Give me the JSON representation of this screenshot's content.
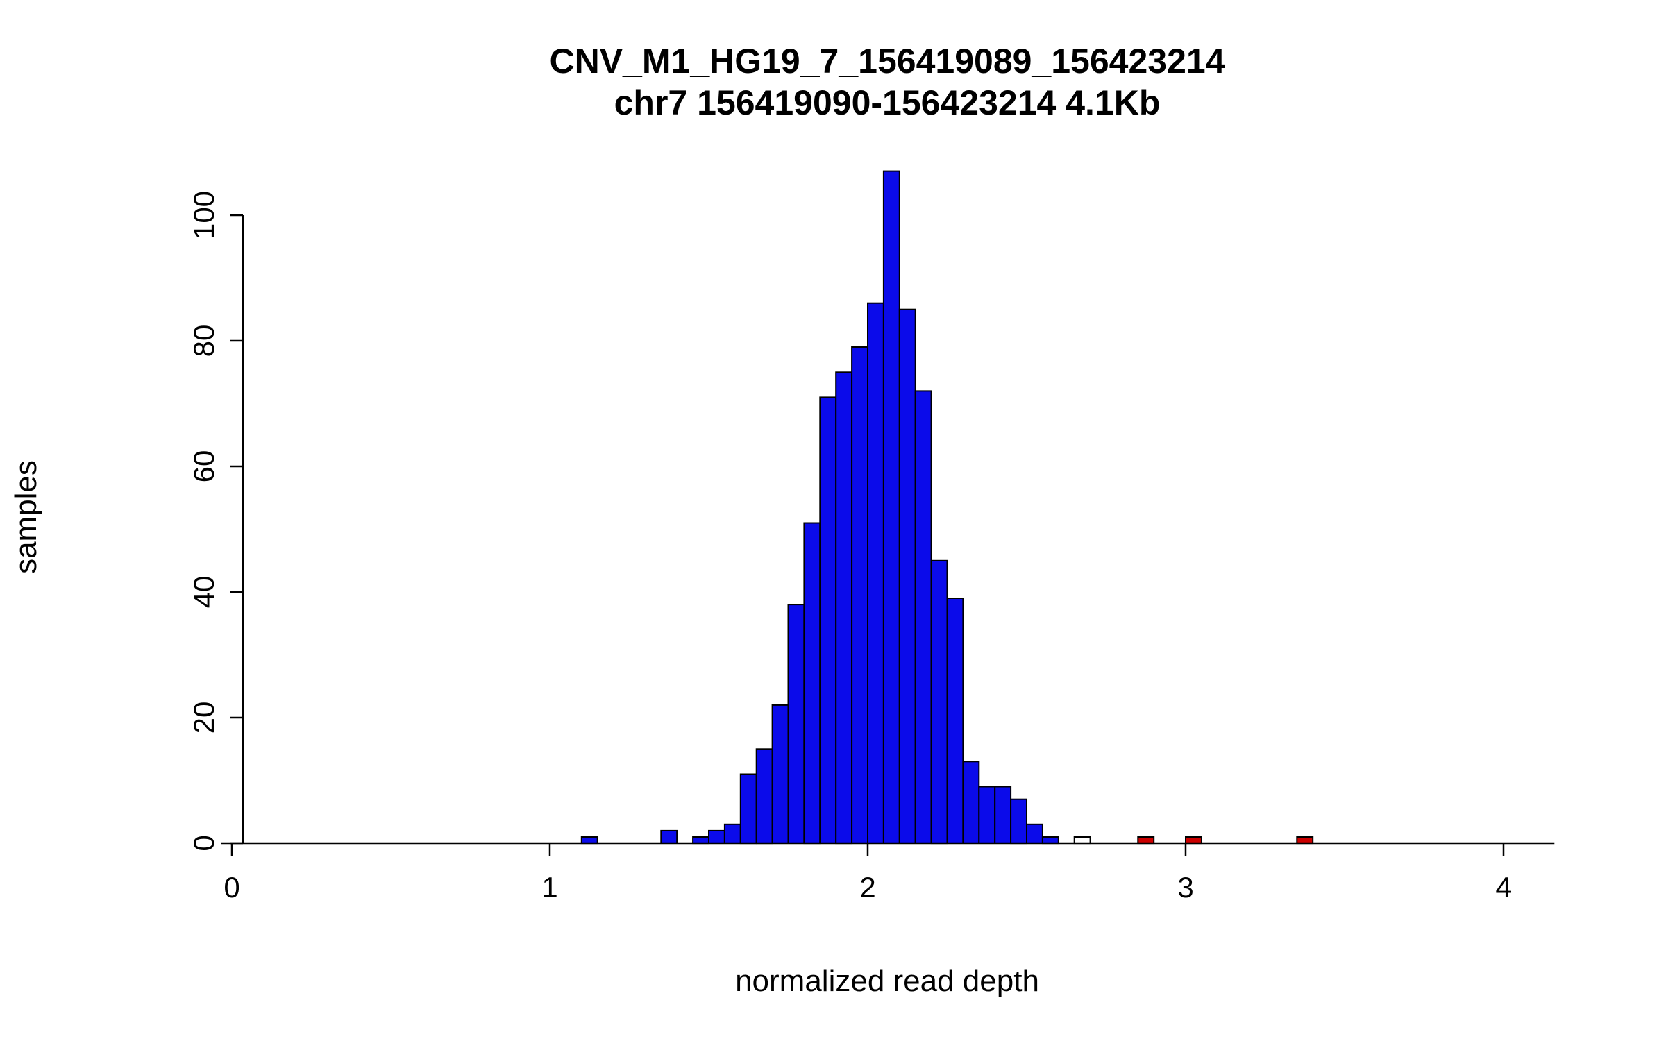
{
  "chart_data": {
    "type": "bar",
    "chart_kind": "histogram",
    "title": "CNV_M1_HG19_7_156419089_156423214",
    "subtitle": "chr7 156419090-156423214 4.1Kb",
    "xlabel": "normalized read depth",
    "ylabel": "samples",
    "x_ticks": [
      0,
      1,
      2,
      3,
      4
    ],
    "y_ticks": [
      0,
      20,
      40,
      60,
      80,
      100
    ],
    "xlim": [
      0,
      4.15
    ],
    "ylim": [
      0,
      107
    ],
    "bin_width": 0.05,
    "grid": false,
    "legend": "none",
    "palette": {
      "blue": "#0b0bea",
      "red": "#cc0000",
      "white": "#ffffff",
      "stroke": "#000000",
      "text": "#000000",
      "background": "#ffffff"
    },
    "bars": [
      {
        "x": 1.1,
        "count": 1,
        "color": "blue"
      },
      {
        "x": 1.35,
        "count": 2,
        "color": "blue"
      },
      {
        "x": 1.45,
        "count": 1,
        "color": "blue"
      },
      {
        "x": 1.5,
        "count": 2,
        "color": "blue"
      },
      {
        "x": 1.55,
        "count": 3,
        "color": "blue"
      },
      {
        "x": 1.6,
        "count": 11,
        "color": "blue"
      },
      {
        "x": 1.65,
        "count": 15,
        "color": "blue"
      },
      {
        "x": 1.7,
        "count": 22,
        "color": "blue"
      },
      {
        "x": 1.75,
        "count": 38,
        "color": "blue"
      },
      {
        "x": 1.8,
        "count": 51,
        "color": "blue"
      },
      {
        "x": 1.85,
        "count": 71,
        "color": "blue"
      },
      {
        "x": 1.9,
        "count": 75,
        "color": "blue"
      },
      {
        "x": 1.95,
        "count": 79,
        "color": "blue"
      },
      {
        "x": 2.0,
        "count": 86,
        "color": "blue"
      },
      {
        "x": 2.05,
        "count": 107,
        "color": "blue"
      },
      {
        "x": 2.1,
        "count": 85,
        "color": "blue"
      },
      {
        "x": 2.15,
        "count": 72,
        "color": "blue"
      },
      {
        "x": 2.2,
        "count": 45,
        "color": "blue"
      },
      {
        "x": 2.25,
        "count": 39,
        "color": "blue"
      },
      {
        "x": 2.3,
        "count": 13,
        "color": "blue"
      },
      {
        "x": 2.35,
        "count": 9,
        "color": "blue"
      },
      {
        "x": 2.4,
        "count": 9,
        "color": "blue"
      },
      {
        "x": 2.45,
        "count": 7,
        "color": "blue"
      },
      {
        "x": 2.5,
        "count": 3,
        "color": "blue"
      },
      {
        "x": 2.55,
        "count": 1,
        "color": "blue"
      },
      {
        "x": 2.65,
        "count": 1,
        "color": "white"
      },
      {
        "x": 2.85,
        "count": 1,
        "color": "red"
      },
      {
        "x": 3.0,
        "count": 1,
        "color": "red"
      },
      {
        "x": 3.35,
        "count": 1,
        "color": "red"
      }
    ]
  }
}
